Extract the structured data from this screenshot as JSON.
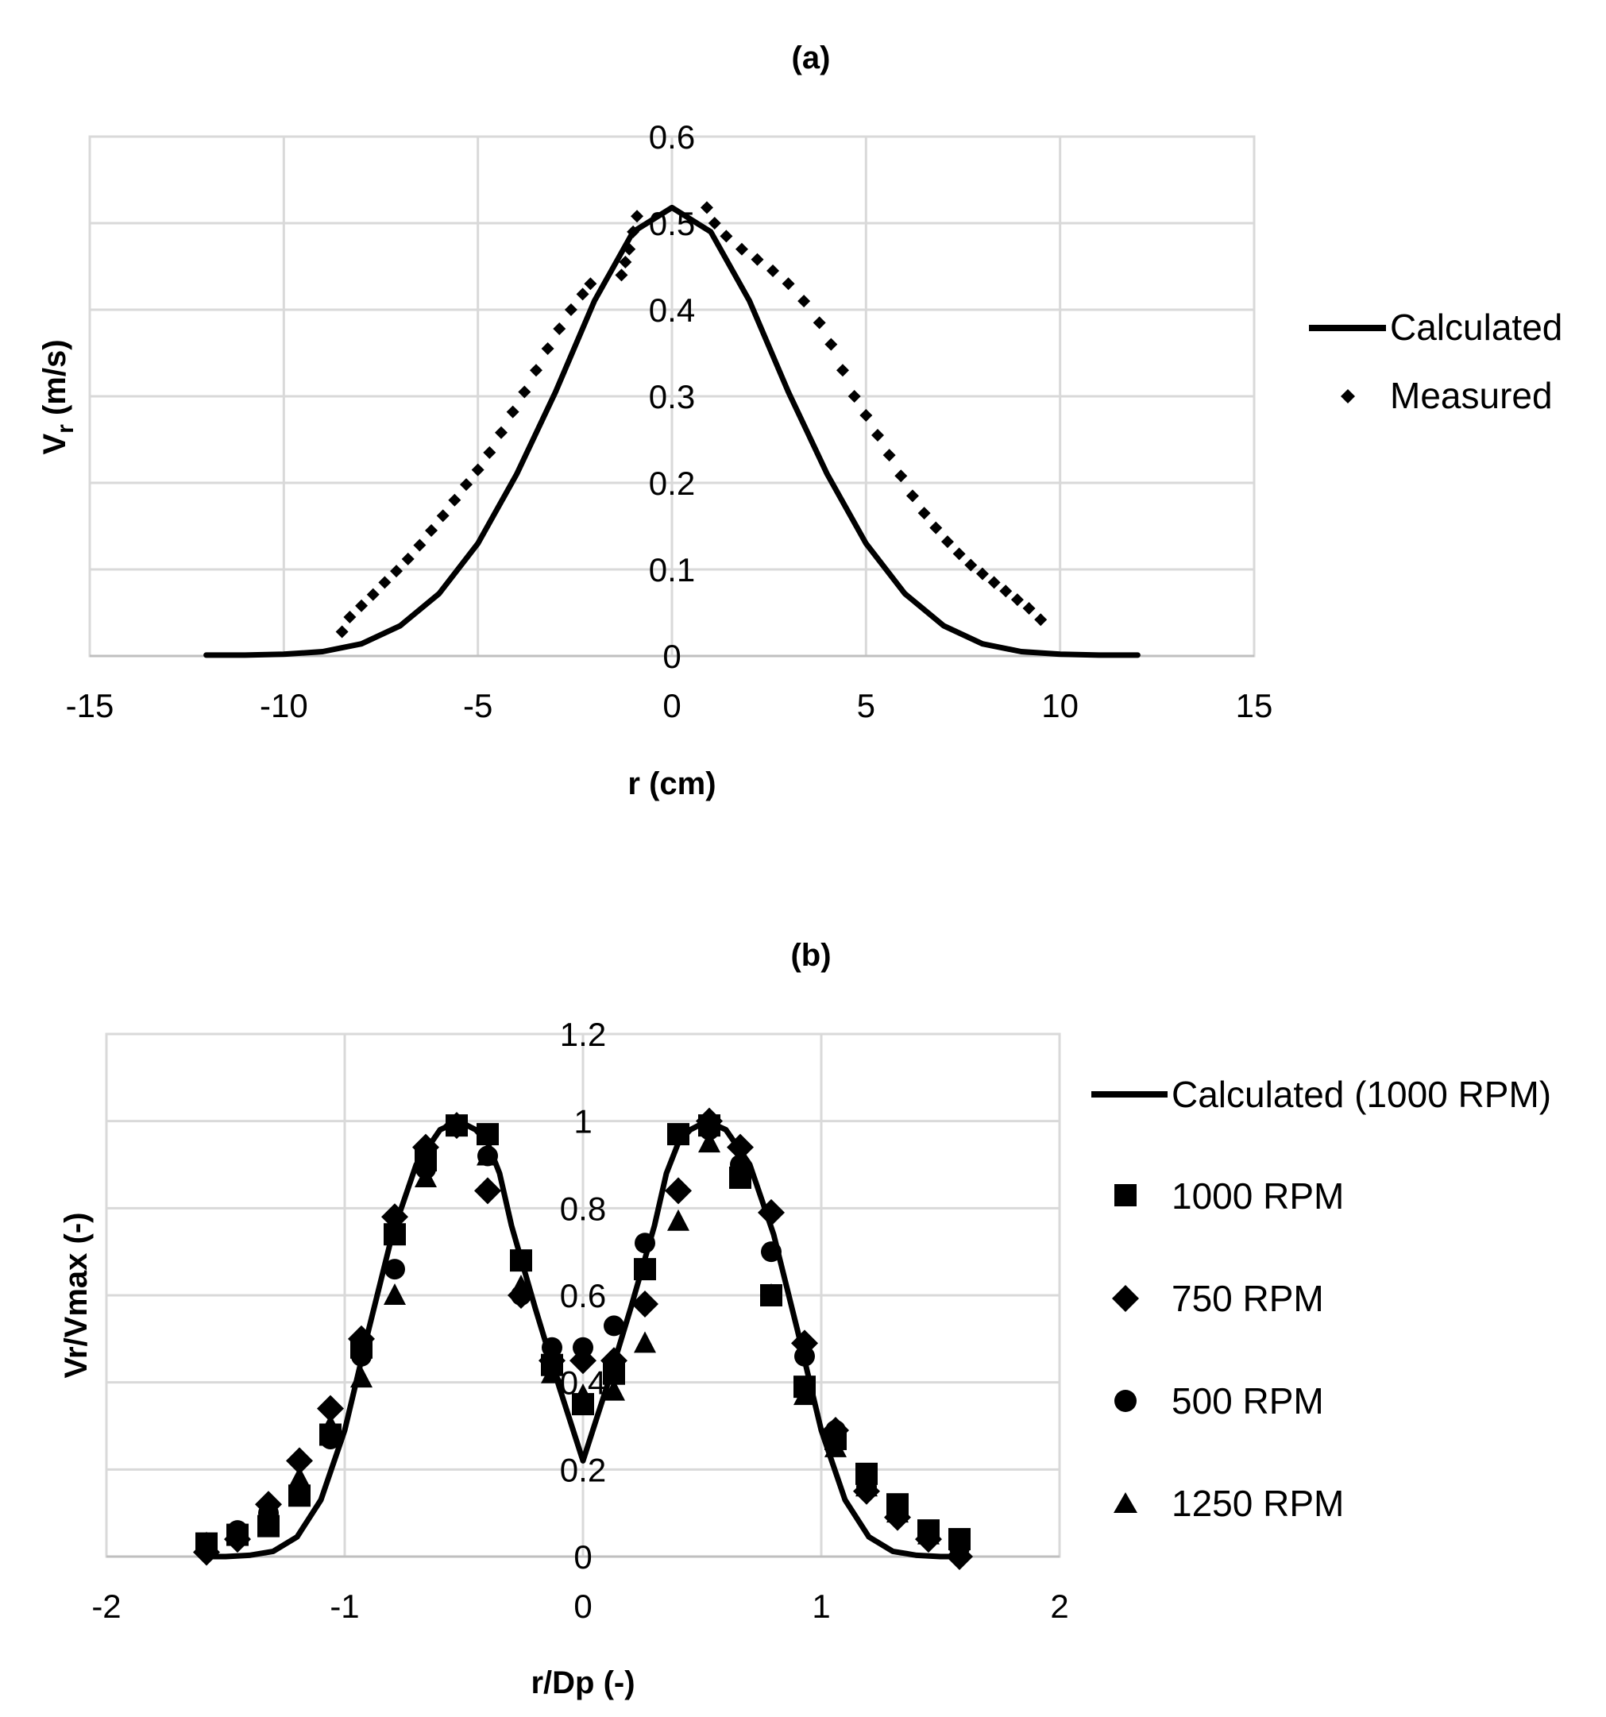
{
  "chart_data": [
    {
      "id": "a",
      "type": "scatter",
      "title": "(a)",
      "xlabel": "r (cm)",
      "ylabel_main": "V",
      "ylabel_sub": "r",
      "ylabel_rest": " (m/s)",
      "xlim": [
        -15,
        15
      ],
      "ylim": [
        0,
        0.6
      ],
      "xticks": [
        -15,
        -10,
        -5,
        0,
        5,
        10,
        15
      ],
      "xtick_labels": [
        "-15",
        "-10",
        "-5",
        "0",
        "5",
        "10",
        "15"
      ],
      "yticks": [
        0,
        0.1,
        0.2,
        0.3,
        0.4,
        0.5,
        0.6
      ],
      "ytick_labels": [
        "0",
        "0.1",
        "0.2",
        "0.3",
        "0.4",
        "0.5",
        "0.6"
      ],
      "legend_position": "right",
      "series": [
        {
          "name": "Calculated",
          "style": "line",
          "x": [
            -12,
            -11,
            -10,
            -9,
            -8,
            -7,
            -6,
            -5,
            -4,
            -3,
            -2,
            -1,
            0,
            1,
            2,
            3,
            4,
            5,
            6,
            7,
            8,
            9,
            10,
            11,
            12
          ],
          "y": [
            0.001,
            0.001,
            0.002,
            0.005,
            0.014,
            0.035,
            0.072,
            0.13,
            0.21,
            0.305,
            0.41,
            0.49,
            0.518,
            0.49,
            0.41,
            0.305,
            0.21,
            0.13,
            0.072,
            0.035,
            0.014,
            0.005,
            0.002,
            0.001,
            0.001
          ]
        },
        {
          "name": "Measured",
          "style": "diamond-small",
          "x": [
            -8.5,
            -8.3,
            -8.0,
            -7.7,
            -7.4,
            -7.1,
            -6.8,
            -6.5,
            -6.2,
            -5.9,
            -5.6,
            -5.3,
            -5.0,
            -4.7,
            -4.4,
            -4.1,
            -3.8,
            -3.5,
            -3.2,
            -2.9,
            -2.6,
            -2.3,
            -2.1,
            -1.3,
            -1.2,
            -1.1,
            -1.0,
            -0.9,
            0.9,
            1.1,
            1.4,
            1.8,
            2.2,
            2.6,
            3.0,
            3.4,
            3.8,
            4.1,
            4.4,
            4.7,
            5.0,
            5.3,
            5.6,
            5.9,
            6.2,
            6.5,
            6.8,
            7.1,
            7.4,
            7.7,
            8.0,
            8.3,
            8.6,
            8.9,
            9.2,
            9.5
          ],
          "y": [
            0.028,
            0.045,
            0.058,
            0.071,
            0.085,
            0.098,
            0.112,
            0.128,
            0.145,
            0.162,
            0.18,
            0.198,
            0.215,
            0.235,
            0.258,
            0.282,
            0.305,
            0.33,
            0.355,
            0.378,
            0.4,
            0.418,
            0.43,
            0.44,
            0.455,
            0.47,
            0.49,
            0.508,
            0.518,
            0.5,
            0.485,
            0.47,
            0.458,
            0.445,
            0.43,
            0.41,
            0.385,
            0.36,
            0.33,
            0.3,
            0.278,
            0.255,
            0.232,
            0.208,
            0.185,
            0.165,
            0.148,
            0.132,
            0.118,
            0.105,
            0.095,
            0.085,
            0.075,
            0.065,
            0.055,
            0.042
          ]
        }
      ]
    },
    {
      "id": "b",
      "type": "scatter",
      "title": "(b)",
      "xlabel": "r/Dp (-)",
      "ylabel": "Vr/Vmax (-)",
      "xlim": [
        -2,
        2
      ],
      "ylim": [
        0,
        1.2
      ],
      "xticks": [
        -2,
        -1,
        0,
        1,
        2
      ],
      "xtick_labels": [
        "-2",
        "-1",
        "0",
        "1",
        "2"
      ],
      "yticks": [
        0,
        0.2,
        0.4,
        0.6,
        0.8,
        1.0,
        1.2
      ],
      "ytick_labels": [
        "0",
        "0.2",
        "0.4",
        "0.6",
        "0.8",
        "1",
        "1.2"
      ],
      "legend_position": "right",
      "series": [
        {
          "name": "Calculated (1000 RPM)",
          "style": "line",
          "x": [
            -1.6,
            -1.5,
            -1.4,
            -1.3,
            -1.2,
            -1.1,
            -1.0,
            -0.9,
            -0.8,
            -0.7,
            -0.6,
            -0.52,
            -0.45,
            -0.4,
            -0.35,
            -0.3,
            -0.2,
            -0.1,
            0,
            0.1,
            0.2,
            0.3,
            0.35,
            0.4,
            0.45,
            0.52,
            0.6,
            0.7,
            0.8,
            0.9,
            1.0,
            1.1,
            1.2,
            1.3,
            1.4,
            1.5,
            1.6
          ],
          "y": [
            0.0,
            0.0,
            0.003,
            0.012,
            0.045,
            0.13,
            0.29,
            0.52,
            0.74,
            0.9,
            0.98,
            1.0,
            0.98,
            0.95,
            0.88,
            0.76,
            0.57,
            0.39,
            0.22,
            0.39,
            0.57,
            0.76,
            0.88,
            0.95,
            0.98,
            1.0,
            0.98,
            0.9,
            0.74,
            0.52,
            0.29,
            0.13,
            0.045,
            0.012,
            0.003,
            0.0,
            0.0
          ]
        },
        {
          "name": "1000 RPM",
          "style": "square",
          "x": [
            -1.58,
            -1.45,
            -1.32,
            -1.19,
            -1.06,
            -0.93,
            -0.79,
            -0.66,
            -0.53,
            -0.4,
            -0.26,
            -0.13,
            0.0,
            0.13,
            0.26,
            0.4,
            0.53,
            0.66,
            0.79,
            0.93,
            1.06,
            1.19,
            1.32,
            1.45,
            1.58
          ],
          "y": [
            0.03,
            0.05,
            0.07,
            0.14,
            0.28,
            0.48,
            0.74,
            0.91,
            0.99,
            0.97,
            0.68,
            0.44,
            0.35,
            0.42,
            0.66,
            0.97,
            0.99,
            0.87,
            0.6,
            0.39,
            0.27,
            0.19,
            0.12,
            0.06,
            0.04
          ]
        },
        {
          "name": "750 RPM",
          "style": "diamond",
          "x": [
            -1.58,
            -1.45,
            -1.32,
            -1.19,
            -1.06,
            -0.93,
            -0.79,
            -0.66,
            -0.53,
            -0.4,
            -0.26,
            -0.13,
            0.0,
            0.13,
            0.26,
            0.4,
            0.53,
            0.66,
            0.79,
            0.93,
            1.06,
            1.19,
            1.32,
            1.45,
            1.58
          ],
          "y": [
            0.01,
            0.04,
            0.12,
            0.22,
            0.34,
            0.5,
            0.78,
            0.94,
            0.99,
            0.84,
            0.6,
            0.45,
            0.45,
            0.45,
            0.58,
            0.84,
            1.0,
            0.94,
            0.79,
            0.49,
            0.29,
            0.15,
            0.09,
            0.04,
            0.0
          ]
        },
        {
          "name": "500 RPM",
          "style": "circle",
          "x": [
            -1.58,
            -1.45,
            -1.32,
            -1.19,
            -1.06,
            -0.93,
            -0.79,
            -0.66,
            -0.53,
            -0.4,
            -0.26,
            -0.13,
            0.0,
            0.13,
            0.26,
            0.4,
            0.53,
            0.66,
            0.79,
            0.93,
            1.06,
            1.19,
            1.32,
            1.45,
            1.58
          ],
          "y": [
            0.02,
            0.06,
            0.1,
            0.15,
            0.27,
            0.46,
            0.66,
            0.89,
            0.99,
            0.92,
            0.6,
            0.48,
            0.48,
            0.53,
            0.72,
            0.97,
            0.98,
            0.9,
            0.7,
            0.46,
            0.29,
            0.16,
            0.1,
            0.05,
            0.02
          ]
        },
        {
          "name": "1250 RPM",
          "style": "triangle",
          "x": [
            -1.58,
            -1.45,
            -1.32,
            -1.19,
            -1.06,
            -0.93,
            -0.79,
            -0.66,
            -0.53,
            -0.4,
            -0.26,
            -0.13,
            0.0,
            0.13,
            0.26,
            0.4,
            0.53,
            0.66,
            0.79,
            0.93,
            1.06,
            1.19,
            1.32,
            1.45,
            1.58
          ],
          "y": [
            0.03,
            0.05,
            0.09,
            0.18,
            0.3,
            0.41,
            0.6,
            0.87,
            0.99,
            0.92,
            0.62,
            0.42,
            0.37,
            0.38,
            0.49,
            0.77,
            0.95,
            0.89,
            0.6,
            0.37,
            0.25,
            0.16,
            0.1,
            0.05,
            0.02
          ]
        }
      ]
    }
  ]
}
